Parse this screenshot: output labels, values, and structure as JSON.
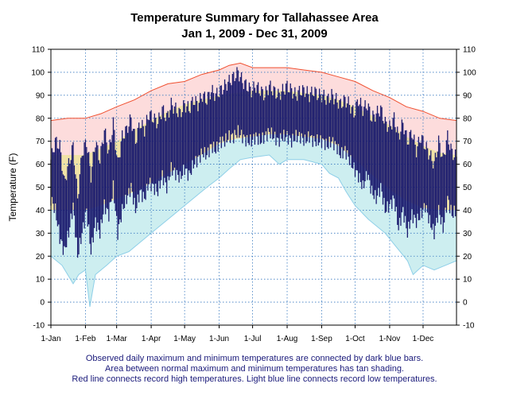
{
  "chart_data": {
    "type": "area",
    "title": "Temperature Summary for Tallahassee Area",
    "subtitle": "Jan  1, 2009 - Dec 31, 2009",
    "ylabel": "Temperature (F)",
    "xlabel": "",
    "ylim": [
      -10,
      110
    ],
    "yticks": [
      "110",
      "100",
      "90",
      "80",
      "70",
      "60",
      "50",
      "40",
      "30",
      "20",
      "10",
      "0",
      "-10"
    ],
    "xtick_labels": [
      "1-Jan",
      "1-Feb",
      "1-Mar",
      "1-Apr",
      "1-May",
      "1-Jun",
      "1-Jul",
      "1-Aug",
      "1-Sep",
      "1-Oct",
      "1-Nov",
      "1-Dec"
    ],
    "xtick_days": [
      0,
      31,
      59,
      90,
      120,
      151,
      181,
      212,
      243,
      273,
      304,
      334
    ],
    "days_in_year": 365,
    "grid": true,
    "series": [
      {
        "name": "Record High",
        "color": "#f05030",
        "points": [
          [
            0,
            79
          ],
          [
            15,
            80
          ],
          [
            31,
            80
          ],
          [
            45,
            82
          ],
          [
            59,
            85
          ],
          [
            75,
            88
          ],
          [
            90,
            92
          ],
          [
            105,
            95
          ],
          [
            120,
            96
          ],
          [
            135,
            99
          ],
          [
            151,
            101
          ],
          [
            160,
            103
          ],
          [
            170,
            104
          ],
          [
            181,
            102
          ],
          [
            196,
            102
          ],
          [
            212,
            102
          ],
          [
            227,
            101
          ],
          [
            243,
            100
          ],
          [
            258,
            98
          ],
          [
            273,
            96
          ],
          [
            289,
            92
          ],
          [
            304,
            89
          ],
          [
            319,
            85
          ],
          [
            334,
            83
          ],
          [
            349,
            80
          ],
          [
            364,
            79
          ]
        ]
      },
      {
        "name": "Normal High",
        "color": "#f0d890",
        "points": [
          [
            0,
            64
          ],
          [
            31,
            64
          ],
          [
            45,
            67
          ],
          [
            59,
            70
          ],
          [
            75,
            75
          ],
          [
            90,
            79
          ],
          [
            105,
            83
          ],
          [
            120,
            86
          ],
          [
            135,
            88
          ],
          [
            151,
            90
          ],
          [
            166,
            91
          ],
          [
            181,
            92
          ],
          [
            196,
            92
          ],
          [
            212,
            92
          ],
          [
            227,
            91
          ],
          [
            243,
            90
          ],
          [
            258,
            88
          ],
          [
            273,
            85
          ],
          [
            289,
            81
          ],
          [
            304,
            77
          ],
          [
            319,
            72
          ],
          [
            334,
            68
          ],
          [
            349,
            65
          ],
          [
            364,
            64
          ]
        ]
      },
      {
        "name": "Normal Low",
        "color": "#f0d890",
        "points": [
          [
            0,
            40
          ],
          [
            31,
            40
          ],
          [
            45,
            42
          ],
          [
            59,
            45
          ],
          [
            75,
            48
          ],
          [
            90,
            52
          ],
          [
            105,
            56
          ],
          [
            120,
            60
          ],
          [
            135,
            64
          ],
          [
            151,
            69
          ],
          [
            166,
            71
          ],
          [
            181,
            72
          ],
          [
            196,
            73
          ],
          [
            212,
            73
          ],
          [
            227,
            72
          ],
          [
            243,
            71
          ],
          [
            258,
            68
          ],
          [
            273,
            62
          ],
          [
            289,
            55
          ],
          [
            304,
            49
          ],
          [
            319,
            44
          ],
          [
            334,
            41
          ],
          [
            349,
            40
          ],
          [
            364,
            40
          ]
        ]
      },
      {
        "name": "Record Low",
        "color": "#a8d8ec",
        "points": [
          [
            0,
            20
          ],
          [
            10,
            16
          ],
          [
            20,
            8
          ],
          [
            25,
            12
          ],
          [
            31,
            14
          ],
          [
            35,
            -2
          ],
          [
            40,
            12
          ],
          [
            50,
            16
          ],
          [
            59,
            20
          ],
          [
            70,
            22
          ],
          [
            80,
            26
          ],
          [
            90,
            30
          ],
          [
            100,
            34
          ],
          [
            110,
            38
          ],
          [
            120,
            42
          ],
          [
            130,
            46
          ],
          [
            140,
            50
          ],
          [
            151,
            54
          ],
          [
            160,
            58
          ],
          [
            170,
            62
          ],
          [
            181,
            63
          ],
          [
            196,
            64
          ],
          [
            205,
            60
          ],
          [
            212,
            62
          ],
          [
            227,
            62
          ],
          [
            243,
            60
          ],
          [
            250,
            56
          ],
          [
            258,
            54
          ],
          [
            265,
            48
          ],
          [
            273,
            42
          ],
          [
            285,
            36
          ],
          [
            300,
            30
          ],
          [
            310,
            24
          ],
          [
            320,
            18
          ],
          [
            325,
            12
          ],
          [
            334,
            16
          ],
          [
            344,
            14
          ],
          [
            354,
            16
          ],
          [
            364,
            18
          ]
        ]
      },
      {
        "name": "Observed Max",
        "color": "#1a1a6e",
        "points": [
          [
            0,
            62
          ],
          [
            4,
            70
          ],
          [
            8,
            68
          ],
          [
            12,
            52
          ],
          [
            16,
            60
          ],
          [
            20,
            68
          ],
          [
            24,
            45
          ],
          [
            28,
            65
          ],
          [
            32,
            70
          ],
          [
            36,
            55
          ],
          [
            40,
            70
          ],
          [
            44,
            62
          ],
          [
            48,
            75
          ],
          [
            52,
            65
          ],
          [
            56,
            78
          ],
          [
            60,
            60
          ],
          [
            64,
            72
          ],
          [
            68,
            75
          ],
          [
            72,
            80
          ],
          [
            76,
            70
          ],
          [
            80,
            78
          ],
          [
            84,
            75
          ],
          [
            88,
            82
          ],
          [
            92,
            80
          ],
          [
            96,
            78
          ],
          [
            100,
            84
          ],
          [
            104,
            80
          ],
          [
            108,
            86
          ],
          [
            112,
            84
          ],
          [
            116,
            82
          ],
          [
            120,
            86
          ],
          [
            124,
            84
          ],
          [
            128,
            88
          ],
          [
            132,
            86
          ],
          [
            136,
            90
          ],
          [
            140,
            88
          ],
          [
            144,
            92
          ],
          [
            148,
            90
          ],
          [
            152,
            92
          ],
          [
            156,
            94
          ],
          [
            160,
            96
          ],
          [
            164,
            98
          ],
          [
            168,
            100
          ],
          [
            172,
            96
          ],
          [
            176,
            94
          ],
          [
            180,
            92
          ],
          [
            184,
            94
          ],
          [
            188,
            92
          ],
          [
            192,
            90
          ],
          [
            196,
            94
          ],
          [
            200,
            92
          ],
          [
            204,
            90
          ],
          [
            208,
            92
          ],
          [
            212,
            94
          ],
          [
            216,
            92
          ],
          [
            220,
            90
          ],
          [
            224,
            92
          ],
          [
            228,
            92
          ],
          [
            232,
            90
          ],
          [
            236,
            92
          ],
          [
            240,
            90
          ],
          [
            244,
            90
          ],
          [
            248,
            88
          ],
          [
            252,
            90
          ],
          [
            256,
            88
          ],
          [
            260,
            86
          ],
          [
            264,
            88
          ],
          [
            268,
            86
          ],
          [
            272,
            82
          ],
          [
            276,
            88
          ],
          [
            280,
            84
          ],
          [
            284,
            86
          ],
          [
            288,
            80
          ],
          [
            292,
            82
          ],
          [
            296,
            84
          ],
          [
            300,
            78
          ],
          [
            304,
            76
          ],
          [
            308,
            80
          ],
          [
            312,
            72
          ],
          [
            316,
            78
          ],
          [
            320,
            70
          ],
          [
            324,
            74
          ],
          [
            328,
            66
          ],
          [
            332,
            72
          ],
          [
            336,
            68
          ],
          [
            340,
            64
          ],
          [
            344,
            60
          ],
          [
            348,
            70
          ],
          [
            352,
            62
          ],
          [
            356,
            72
          ],
          [
            360,
            65
          ],
          [
            364,
            63
          ]
        ]
      },
      {
        "name": "Observed Min",
        "color": "#1a1a6e",
        "points": [
          [
            0,
            45
          ],
          [
            4,
            40
          ],
          [
            8,
            28
          ],
          [
            12,
            22
          ],
          [
            16,
            30
          ],
          [
            20,
            42
          ],
          [
            24,
            20
          ],
          [
            28,
            30
          ],
          [
            32,
            40
          ],
          [
            36,
            22
          ],
          [
            40,
            35
          ],
          [
            44,
            30
          ],
          [
            48,
            42
          ],
          [
            52,
            38
          ],
          [
            56,
            50
          ],
          [
            60,
            30
          ],
          [
            64,
            40
          ],
          [
            68,
            45
          ],
          [
            72,
            50
          ],
          [
            76,
            40
          ],
          [
            80,
            48
          ],
          [
            84,
            45
          ],
          [
            88,
            52
          ],
          [
            92,
            50
          ],
          [
            96,
            48
          ],
          [
            100,
            55
          ],
          [
            104,
            50
          ],
          [
            108,
            58
          ],
          [
            112,
            56
          ],
          [
            116,
            54
          ],
          [
            120,
            58
          ],
          [
            124,
            55
          ],
          [
            128,
            60
          ],
          [
            132,
            62
          ],
          [
            136,
            65
          ],
          [
            140,
            64
          ],
          [
            144,
            68
          ],
          [
            148,
            66
          ],
          [
            152,
            70
          ],
          [
            156,
            70
          ],
          [
            160,
            72
          ],
          [
            164,
            72
          ],
          [
            168,
            74
          ],
          [
            172,
            72
          ],
          [
            176,
            70
          ],
          [
            180,
            70
          ],
          [
            184,
            72
          ],
          [
            188,
            70
          ],
          [
            192,
            72
          ],
          [
            196,
            74
          ],
          [
            200,
            72
          ],
          [
            204,
            70
          ],
          [
            208,
            72
          ],
          [
            212,
            72
          ],
          [
            216,
            70
          ],
          [
            220,
            72
          ],
          [
            224,
            72
          ],
          [
            228,
            70
          ],
          [
            232,
            72
          ],
          [
            236,
            70
          ],
          [
            240,
            70
          ],
          [
            244,
            70
          ],
          [
            248,
            68
          ],
          [
            252,
            70
          ],
          [
            256,
            68
          ],
          [
            260,
            64
          ],
          [
            264,
            66
          ],
          [
            268,
            62
          ],
          [
            272,
            58
          ],
          [
            276,
            55
          ],
          [
            280,
            50
          ],
          [
            284,
            56
          ],
          [
            288,
            48
          ],
          [
            292,
            45
          ],
          [
            296,
            50
          ],
          [
            300,
            40
          ],
          [
            304,
            42
          ],
          [
            308,
            45
          ],
          [
            312,
            32
          ],
          [
            316,
            40
          ],
          [
            320,
            30
          ],
          [
            324,
            38
          ],
          [
            328,
            35
          ],
          [
            332,
            38
          ],
          [
            336,
            42
          ],
          [
            340,
            35
          ],
          [
            344,
            30
          ],
          [
            348,
            40
          ],
          [
            352,
            32
          ],
          [
            356,
            45
          ],
          [
            360,
            38
          ],
          [
            364,
            40
          ]
        ]
      }
    ]
  },
  "caption": {
    "line1": "Observed daily maximum and minimum temperatures are connected by dark blue bars.",
    "line2": "Area between normal maximum and minimum temperatures has tan shading.",
    "line3": "Red line connects record high temperatures. Light blue line connects record low temperatures."
  }
}
